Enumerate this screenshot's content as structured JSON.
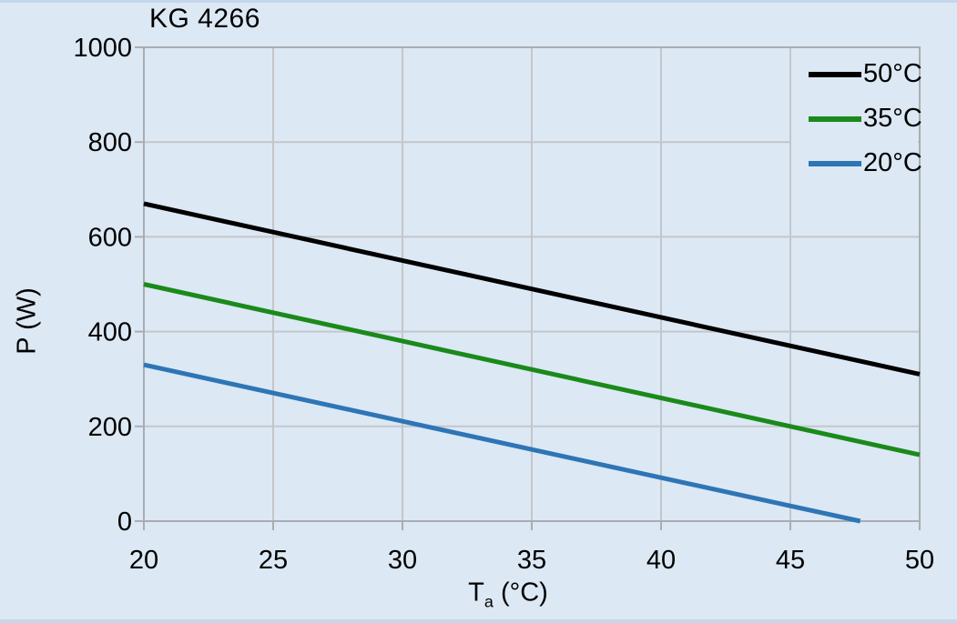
{
  "colors": {
    "background": "#dce8f4",
    "edge_strip": "#c5d7eb",
    "gridline": "#c3c6c9",
    "axis_frame": "#a9adb1",
    "text": "#000000"
  },
  "chart_data": {
    "type": "line",
    "title": "KG 4266",
    "xlabel": "Ta (°C)",
    "xlabel_parts": {
      "main": "T",
      "sub": "a",
      "unit": " (°C)"
    },
    "ylabel": "P (W)",
    "xlim": [
      20,
      50
    ],
    "ylim": [
      0,
      1000
    ],
    "xticks": [
      20,
      25,
      30,
      35,
      40,
      45,
      50
    ],
    "yticks": [
      0,
      200,
      400,
      600,
      800,
      1000
    ],
    "grid": true,
    "legend_position": "top-right-inside",
    "series": [
      {
        "name": "50°C",
        "color": "#000000",
        "points": [
          [
            20,
            670
          ],
          [
            50,
            310
          ]
        ]
      },
      {
        "name": "35°C",
        "color": "#1a8a1a",
        "points": [
          [
            20,
            500
          ],
          [
            50,
            140
          ]
        ]
      },
      {
        "name": "20°C",
        "color": "#2e75b6",
        "points": [
          [
            20,
            330
          ],
          [
            47.7,
            0
          ]
        ]
      }
    ]
  }
}
